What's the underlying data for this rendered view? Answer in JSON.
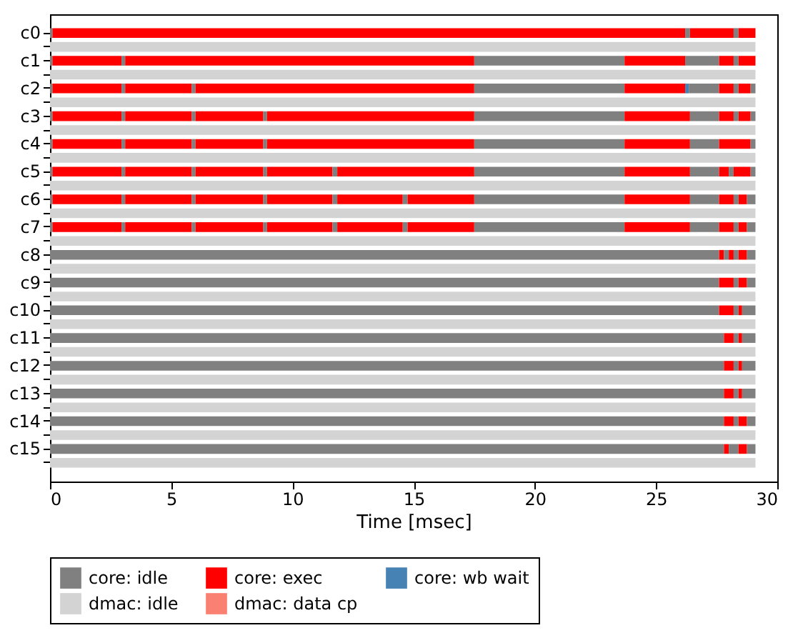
{
  "chart_data": {
    "type": "bar",
    "orientation": "horizontal",
    "stacked": true,
    "xlabel": "Time [msec]",
    "xlim": [
      0,
      30
    ],
    "xticks": [
      0,
      5,
      10,
      15,
      20,
      25,
      30
    ],
    "legend": "bottom",
    "categories": [
      "c0",
      null,
      "c1",
      null,
      "c2",
      null,
      "c3",
      null,
      "c4",
      null,
      "c5",
      null,
      "c6",
      null,
      "c7",
      null,
      "c8",
      null,
      "c9",
      null,
      "c10",
      null,
      "c11",
      null,
      "c12",
      null,
      "c13",
      null,
      "c14",
      null,
      "c15",
      null
    ],
    "series": [
      {
        "name": "core: idle",
        "color": "#808080",
        "values": [
          0.1,
          null,
          0.1,
          null,
          0.1,
          null,
          0.1,
          null,
          0.1,
          null,
          0.1,
          null,
          0.1,
          null,
          0.1,
          null,
          27.6,
          null,
          27.6,
          null,
          27.6,
          null,
          27.8,
          null,
          27.8,
          null,
          27.8,
          null,
          27.8,
          null,
          27.8,
          null
        ]
      },
      {
        "name": "core: exec",
        "color": "#ff0000",
        "values": [
          26.1,
          null,
          2.85,
          null,
          2.85,
          null,
          2.85,
          null,
          2.85,
          null,
          2.85,
          null,
          2.85,
          null,
          2.85,
          null,
          0.2,
          null,
          0.6,
          null,
          0.6,
          null,
          0.4,
          null,
          0.4,
          null,
          0.4,
          null,
          0.4,
          null,
          0.2,
          null
        ]
      },
      {
        "name": "core: wb wait",
        "color": "#4682b4",
        "values": [
          null,
          null,
          null,
          null,
          null,
          null,
          null,
          null,
          null,
          null,
          null,
          null,
          null,
          null,
          null,
          null,
          null,
          null,
          null,
          null,
          null,
          null,
          null,
          null,
          null,
          null,
          null,
          null,
          null,
          null,
          null,
          null
        ]
      },
      {
        "name": "dmac: idle",
        "color": "#d3d3d3",
        "values": [
          null,
          29.1,
          null,
          29.1,
          null,
          29.1,
          null,
          29.1,
          null,
          29.1,
          null,
          29.1,
          null,
          29.1,
          null,
          29.1,
          null,
          29.1,
          null,
          29.1,
          null,
          29.1,
          null,
          29.1,
          null,
          29.1,
          null,
          29.1,
          null,
          29.1,
          null,
          29.1
        ]
      },
      {
        "name": "dmac: data cp",
        "color": "#fa8072",
        "values": [
          null,
          null,
          null,
          null,
          null,
          null,
          null,
          null,
          null,
          null,
          null,
          null,
          null,
          null,
          null,
          null,
          null,
          null,
          null,
          null,
          null,
          null,
          null,
          null,
          null,
          null,
          null,
          null,
          null,
          null,
          null,
          null
        ]
      },
      {
        "color": "#808080",
        "values": [
          0.2,
          null,
          0.15,
          null,
          0.15,
          null,
          0.15,
          null,
          0.15,
          null,
          0.15,
          null,
          0.15,
          null,
          0.15,
          null,
          0.2,
          null,
          0.2,
          null,
          0.2,
          null,
          0.2,
          null,
          0.2,
          null,
          0.2,
          null,
          0.2,
          null,
          0.4,
          null
        ]
      },
      {
        "color": "#ff0000",
        "values": [
          1.8,
          null,
          14.4,
          null,
          2.75,
          null,
          2.75,
          null,
          2.75,
          null,
          2.75,
          null,
          2.75,
          null,
          2.75,
          null,
          0.2,
          null,
          0.35,
          null,
          0.15,
          null,
          0.15,
          null,
          0.15,
          null,
          0.15,
          null,
          0.35,
          null,
          0.35,
          null
        ]
      },
      {
        "color": "#808080",
        "values": [
          0.2,
          null,
          6.2,
          null,
          0.15,
          null,
          0.15,
          null,
          0.15,
          null,
          0.15,
          null,
          0.15,
          null,
          0.15,
          null,
          0.2,
          null,
          0.35,
          null,
          0.55,
          null,
          0.55,
          null,
          0.55,
          null,
          0.55,
          null,
          0.35,
          null,
          0.35,
          null
        ]
      },
      {
        "color": "#ff0000",
        "values": [
          0.7,
          null,
          2.5,
          null,
          11.5,
          null,
          2.8,
          null,
          2.8,
          null,
          2.8,
          null,
          2.8,
          null,
          2.8,
          null,
          0.35,
          null,
          null,
          null,
          null,
          null,
          null,
          null,
          null,
          null,
          null,
          null,
          null,
          null,
          null,
          null
        ]
      },
      {
        "color": "#808080",
        "values": [
          null,
          null,
          1.4,
          null,
          6.2,
          null,
          0.15,
          null,
          0.15,
          null,
          0.15,
          null,
          0.15,
          null,
          0.15,
          null,
          0.35,
          null,
          null,
          null,
          null,
          null,
          null,
          null,
          null,
          null,
          null,
          null,
          null,
          null,
          null,
          null
        ]
      },
      {
        "color": "#ff0000",
        "values": [
          null,
          null,
          0.6,
          null,
          2.5,
          null,
          8.55,
          null,
          8.55,
          null,
          2.7,
          null,
          2.7,
          null,
          2.7,
          null,
          null,
          null,
          null,
          null,
          null,
          null,
          null,
          null,
          null,
          null,
          null,
          null,
          null,
          null,
          null,
          null
        ]
      },
      {
        "colors": [
          null,
          null,
          "#808080",
          null,
          "#4682b4",
          null,
          "#808080",
          null,
          "#808080",
          null,
          "#808080",
          null,
          "#808080",
          null,
          "#808080",
          null,
          null,
          null,
          null,
          null,
          null,
          null,
          null,
          null,
          null,
          null,
          null,
          null,
          null,
          null,
          null,
          null
        ],
        "values": [
          null,
          null,
          0.2,
          null,
          0.15,
          null,
          6.2,
          null,
          6.2,
          null,
          0.2,
          null,
          0.2,
          null,
          0.2,
          null,
          null,
          null,
          null,
          null,
          null,
          null,
          null,
          null,
          null,
          null,
          null,
          null,
          null,
          null,
          null,
          null
        ]
      },
      {
        "colors": [
          null,
          null,
          "#ff0000",
          null,
          "#808080",
          null,
          "#ff0000",
          null,
          "#ff0000",
          null,
          "#ff0000",
          null,
          "#ff0000",
          null,
          "#ff0000",
          null,
          null,
          null,
          null,
          null,
          null,
          null,
          null,
          null,
          null,
          null,
          null,
          null,
          null,
          null,
          null,
          null
        ],
        "values": [
          null,
          null,
          0.7,
          null,
          1.25,
          null,
          2.7,
          null,
          2.7,
          null,
          5.65,
          null,
          2.7,
          null,
          2.7,
          null,
          null,
          null,
          null,
          null,
          null,
          null,
          null,
          null,
          null,
          null,
          null,
          null,
          null,
          null,
          null,
          null
        ]
      },
      {
        "colors": [
          null,
          null,
          null,
          null,
          "#ff0000",
          null,
          "#808080",
          null,
          "#808080",
          null,
          "#808080",
          null,
          "#808080",
          null,
          "#808080",
          null,
          null,
          null,
          null,
          null,
          null,
          null,
          null,
          null,
          null,
          null,
          null,
          null,
          null,
          null,
          null,
          null
        ],
        "values": [
          null,
          null,
          null,
          null,
          0.6,
          null,
          1.2,
          null,
          1.2,
          null,
          6.2,
          null,
          0.2,
          null,
          0.2,
          null,
          null,
          null,
          null,
          null,
          null,
          null,
          null,
          null,
          null,
          null,
          null,
          null,
          null,
          null,
          null,
          null
        ]
      },
      {
        "colors": [
          null,
          null,
          null,
          null,
          "#808080",
          null,
          "#ff0000",
          null,
          "#ff0000",
          null,
          "#ff0000",
          null,
          "#ff0000",
          null,
          "#ff0000",
          null,
          null,
          null,
          null,
          null,
          null,
          null,
          null,
          null,
          null,
          null,
          null,
          null,
          null,
          null,
          null,
          null
        ],
        "values": [
          null,
          null,
          null,
          null,
          0.2,
          null,
          0.6,
          null,
          1.3,
          null,
          2.7,
          null,
          2.75,
          null,
          2.75,
          null,
          null,
          null,
          null,
          null,
          null,
          null,
          null,
          null,
          null,
          null,
          null,
          null,
          null,
          null,
          null,
          null
        ]
      },
      {
        "colors": [
          null,
          null,
          null,
          null,
          "#ff0000",
          null,
          "#808080",
          null,
          "#808080",
          null,
          "#808080",
          null,
          "#808080",
          null,
          "#808080",
          null,
          null,
          null,
          null,
          null,
          null,
          null,
          null,
          null,
          null,
          null,
          null,
          null,
          null,
          null,
          null,
          null
        ],
        "values": [
          null,
          null,
          null,
          null,
          0.5,
          null,
          0.2,
          null,
          0.2,
          null,
          1.2,
          null,
          6.2,
          null,
          6.2,
          null,
          null,
          null,
          null,
          null,
          null,
          null,
          null,
          null,
          null,
          null,
          null,
          null,
          null,
          null,
          null,
          null
        ]
      },
      {
        "colors": [
          null,
          null,
          null,
          null,
          "#808080",
          null,
          "#ff0000",
          null,
          null,
          null,
          "#ff0000",
          null,
          "#ff0000",
          null,
          "#ff0000",
          null,
          null,
          null,
          null,
          null,
          null,
          null,
          null,
          null,
          null,
          null,
          null,
          null,
          null,
          null,
          null,
          null
        ],
        "values": [
          null,
          null,
          null,
          null,
          0.2,
          null,
          0.5,
          null,
          null,
          null,
          0.4,
          null,
          2.7,
          null,
          2.7,
          null,
          null,
          null,
          null,
          null,
          null,
          null,
          null,
          null,
          null,
          null,
          null,
          null,
          null,
          null,
          null,
          null
        ]
      },
      {
        "color": "#808080",
        "values": [
          null,
          null,
          null,
          null,
          null,
          null,
          0.2,
          null,
          null,
          null,
          0.2,
          null,
          1.2,
          null,
          1.2,
          null,
          null,
          null,
          null,
          null,
          null,
          null,
          null,
          null,
          null,
          null,
          null,
          null,
          null,
          null,
          null,
          null
        ]
      },
      {
        "color": "#ff0000",
        "values": [
          null,
          null,
          null,
          null,
          null,
          null,
          null,
          null,
          null,
          null,
          0.7,
          null,
          0.6,
          null,
          0.6,
          null,
          null,
          null,
          null,
          null,
          null,
          null,
          null,
          null,
          null,
          null,
          null,
          null,
          null,
          null,
          null,
          null
        ]
      },
      {
        "color": "#808080",
        "values": [
          null,
          null,
          null,
          null,
          null,
          null,
          null,
          null,
          null,
          null,
          0.2,
          null,
          0.2,
          null,
          0.2,
          null,
          null,
          null,
          null,
          null,
          null,
          null,
          null,
          null,
          null,
          null,
          null,
          null,
          null,
          null,
          null,
          null
        ]
      },
      {
        "color": "#ff0000",
        "values": [
          null,
          null,
          null,
          null,
          null,
          null,
          null,
          null,
          null,
          null,
          null,
          null,
          0.35,
          null,
          0.35,
          null,
          null,
          null,
          null,
          null,
          null,
          null,
          null,
          null,
          null,
          null,
          null,
          null,
          null,
          null,
          null,
          null
        ]
      },
      {
        "color": "#808080",
        "values": [
          null,
          null,
          null,
          null,
          null,
          null,
          null,
          null,
          null,
          null,
          null,
          null,
          0.35,
          null,
          0.35,
          null,
          null,
          null,
          null,
          null,
          null,
          null,
          null,
          null,
          null,
          null,
          null,
          null,
          null,
          null,
          null,
          null
        ]
      }
    ]
  }
}
